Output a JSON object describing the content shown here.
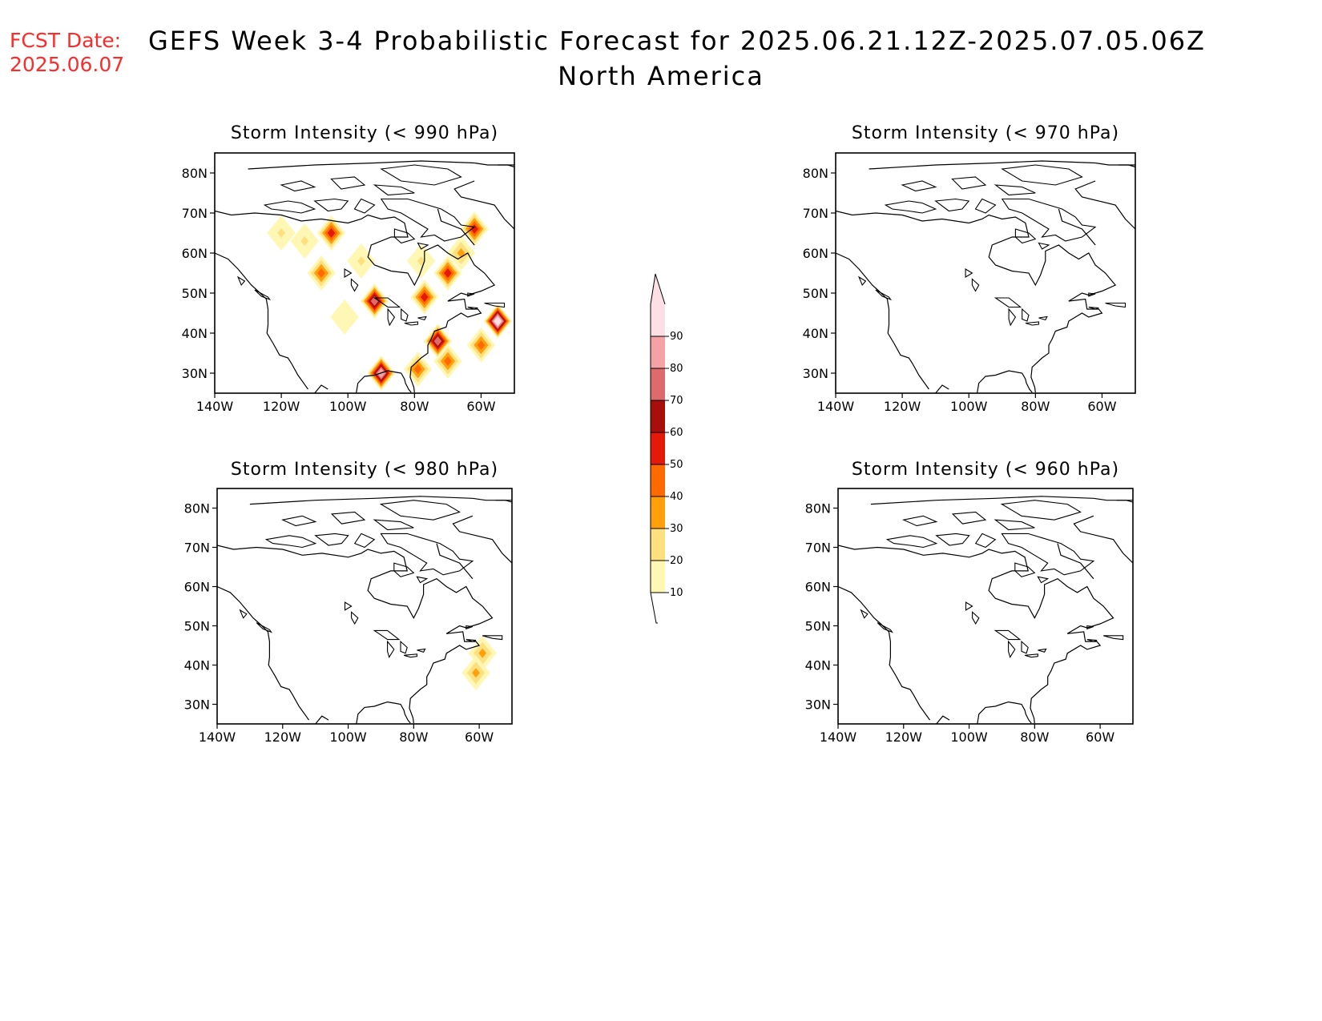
{
  "fcst_date": {
    "label": "FCST Date:",
    "value": "2025.06.07"
  },
  "title": {
    "line1": "GEFS Week 3-4 Probabilistic Forecast for 2025.06.21.12Z-2025.07.05.06Z",
    "line2": "North America"
  },
  "colorbar": {
    "levels": [
      "10",
      "20",
      "30",
      "40",
      "50",
      "60",
      "70",
      "80",
      "90"
    ],
    "colors": [
      "#fff7b3",
      "#fee07e",
      "#ff9f0c",
      "#ff6a00",
      "#e31a0a",
      "#a70f0a",
      "#de6b6b",
      "#f4a2a6",
      "#fde0e6"
    ]
  },
  "axes": {
    "lat_ticks": [
      "80N",
      "70N",
      "60N",
      "50N",
      "40N",
      "30N"
    ],
    "lat_values": [
      80,
      70,
      60,
      50,
      40,
      30
    ],
    "lon_ticks": [
      "140W",
      "120W",
      "100W",
      "80W",
      "60W"
    ],
    "lon_values": [
      -140,
      -120,
      -100,
      -80,
      -60
    ],
    "lat_range": [
      25,
      85
    ],
    "lon_range": [
      -140,
      -50
    ]
  },
  "panels": [
    {
      "id": "p990",
      "title": "Storm Intensity (< 990 hPa)",
      "blobs": [
        {
          "lon": -120,
          "lat": 65,
          "level": 1
        },
        {
          "lon": -113,
          "lat": 63,
          "level": 1
        },
        {
          "lon": -105,
          "lat": 65,
          "level": 4
        },
        {
          "lon": -108,
          "lat": 55,
          "level": 3
        },
        {
          "lon": -96,
          "lat": 58,
          "level": 1
        },
        {
          "lon": -92,
          "lat": 48,
          "level": 6
        },
        {
          "lon": -78,
          "lat": 58,
          "level": 1
        },
        {
          "lon": -77,
          "lat": 49,
          "level": 4
        },
        {
          "lon": -70,
          "lat": 55,
          "level": 4
        },
        {
          "lon": -62,
          "lat": 66,
          "level": 4
        },
        {
          "lon": -66,
          "lat": 60,
          "level": 2
        },
        {
          "lon": -73,
          "lat": 38,
          "level": 6
        },
        {
          "lon": -55,
          "lat": 43,
          "level": 8
        },
        {
          "lon": -60,
          "lat": 37,
          "level": 3
        },
        {
          "lon": -90,
          "lat": 30,
          "level": 7
        },
        {
          "lon": -79,
          "lat": 31,
          "level": 3
        },
        {
          "lon": -70,
          "lat": 33,
          "level": 3
        },
        {
          "lon": -101,
          "lat": 44,
          "level": 0
        }
      ]
    },
    {
      "id": "p970",
      "title": "Storm Intensity (< 970 hPa)",
      "blobs": []
    },
    {
      "id": "p980",
      "title": "Storm Intensity (< 980 hPa)",
      "blobs": [
        {
          "lon": -59,
          "lat": 43,
          "level": 2
        },
        {
          "lon": -61,
          "lat": 38,
          "level": 2
        }
      ]
    },
    {
      "id": "p960",
      "title": "Storm Intensity (< 960 hPa)",
      "blobs": []
    }
  ]
}
